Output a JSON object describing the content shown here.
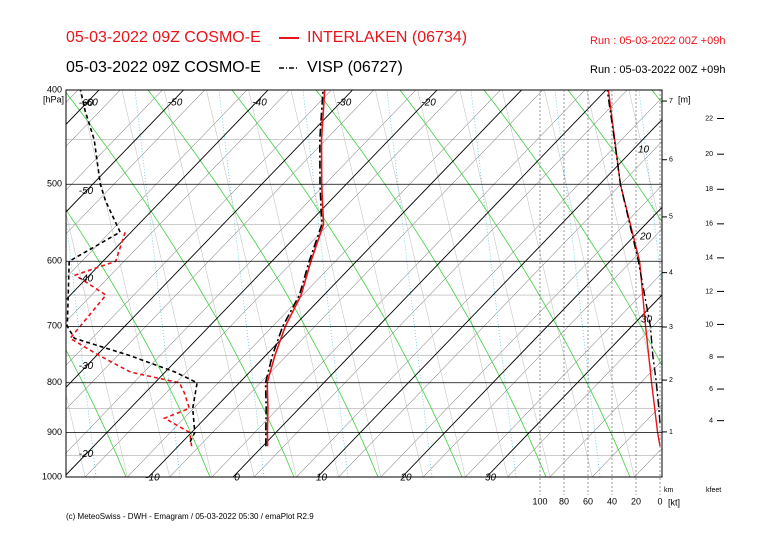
{
  "chart_data": {
    "type": "emagram",
    "ylabel": "[hPa]",
    "ylim": [
      1000,
      400
    ],
    "yticks": [
      400,
      500,
      600,
      700,
      800,
      900,
      1000
    ],
    "log_scale": true,
    "isotherm_ticks_top": [
      -60,
      -50,
      -40,
      -30,
      -20
    ],
    "isotherm_ticks_left": [
      -60,
      -50,
      -40,
      -30,
      -20
    ],
    "isotherm_ticks_bottom": [
      -10,
      0,
      10,
      20,
      30
    ],
    "wind_xlim": [
      0,
      100
    ],
    "wind_xticks": [
      100,
      80,
      60,
      40,
      20,
      0
    ],
    "wind_unit": "[kt]",
    "height_label": "[m]",
    "km_label": "km",
    "km_ticks": [
      1,
      2,
      3,
      4,
      5,
      6,
      7
    ],
    "kfeet_label": "kfeet",
    "kfeet_ticks": [
      4,
      6,
      8,
      10,
      12,
      14,
      16,
      18,
      20,
      22
    ],
    "annotations": [
      "10",
      "20",
      "30"
    ],
    "footer": "(c) MeteoSwiss - DWH - Emagram / 05-03-2022 05:30 / emaPlot R2.9",
    "stations": [
      {
        "model": "05-03-2022 09Z COSMO-E",
        "name": "INTERLAKEN (06734)",
        "run": "Run : 05-03-2022 00Z +09h",
        "color": "#e8141a",
        "dash": "none",
        "temperature": {
          "pressure": [
            930,
            900,
            850,
            800,
            750,
            700,
            650,
            600,
            550,
            500,
            450,
            400
          ],
          "values": [
            0.6,
            -1.0,
            -3.7,
            -6.7,
            -8.9,
            -11,
            -12.7,
            -15.4,
            -18.1,
            -22.9,
            -28,
            -33.3
          ]
        },
        "dewpoint": {
          "pressure": [
            930,
            900,
            870,
            850,
            820,
            800,
            780,
            750,
            720,
            650,
            620,
            600,
            560
          ],
          "values": [
            -8.4,
            -10.2,
            -14.8,
            -13,
            -15.3,
            -17.1,
            -24.1,
            -29.7,
            -35.1,
            -35.8,
            -41.7,
            -38.5,
            -40.7
          ]
        },
        "wind_speed": {
          "pressure": [
            930,
            900,
            800,
            700,
            600,
            500,
            400
          ],
          "values": [
            0,
            2,
            7,
            12,
            17,
            33,
            43
          ]
        }
      },
      {
        "model": "05-03-2022 09Z COSMO-E",
        "name": "VISP (06727)",
        "run": "Run : 05-03-2022 00Z +09h",
        "color": "#000000",
        "dash": "8,3,2,3",
        "temperature": {
          "pressure": [
            930,
            900,
            850,
            800,
            750,
            700,
            650,
            600,
            550,
            500,
            450,
            400
          ],
          "values": [
            0.4,
            -1.2,
            -3.9,
            -6.9,
            -9.2,
            -11.3,
            -12.9,
            -15.6,
            -18.3,
            -23.1,
            -28.2,
            -33.5
          ]
        },
        "dewpoint": {
          "pressure": [
            920,
            900,
            850,
            800,
            780,
            750,
            720,
            700,
            600,
            560,
            520,
            500,
            450,
            420,
            400
          ],
          "values": [
            -9.1,
            -9.6,
            -12.6,
            -15,
            -18.8,
            -26.1,
            -34.6,
            -36.8,
            -44,
            -41.3,
            -46.6,
            -49.1,
            -54.9,
            -59.3,
            -62.2
          ]
        },
        "wind_speed": {
          "pressure": [
            880,
            850,
            800,
            750,
            700,
            600,
            500,
            450,
            400
          ],
          "values": [
            0,
            1,
            3,
            6,
            8,
            18,
            33,
            38,
            44
          ]
        }
      }
    ]
  }
}
